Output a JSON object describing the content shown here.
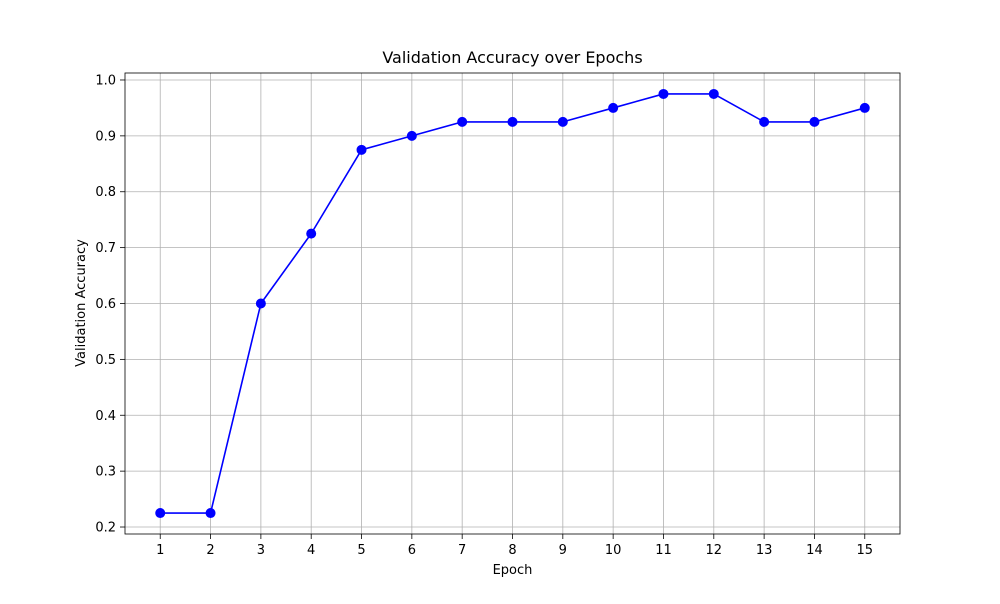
{
  "chart_data": {
    "type": "line",
    "title": "Validation Accuracy over Epochs",
    "xlabel": "Epoch",
    "ylabel": "Validation Accuracy",
    "x": [
      1,
      2,
      3,
      4,
      5,
      6,
      7,
      8,
      9,
      10,
      11,
      12,
      13,
      14,
      15
    ],
    "xticks": [
      "1",
      "2",
      "3",
      "4",
      "5",
      "6",
      "7",
      "8",
      "9",
      "10",
      "11",
      "12",
      "13",
      "14",
      "15"
    ],
    "yticks": [
      "0.2",
      "0.3",
      "0.4",
      "0.5",
      "0.6",
      "0.7",
      "0.8",
      "0.9",
      "1.0"
    ],
    "xlim": [
      0.3,
      15.7
    ],
    "ylim": [
      0.1875,
      1.0125
    ],
    "grid": true,
    "legend": "none",
    "series": [
      {
        "values": [
          0.225,
          0.225,
          0.6,
          0.725,
          0.875,
          0.9,
          0.925,
          0.925,
          0.925,
          0.95,
          0.975,
          0.975,
          0.925,
          0.925,
          0.95
        ],
        "color": "#0000ff",
        "marker": "circle"
      }
    ]
  }
}
